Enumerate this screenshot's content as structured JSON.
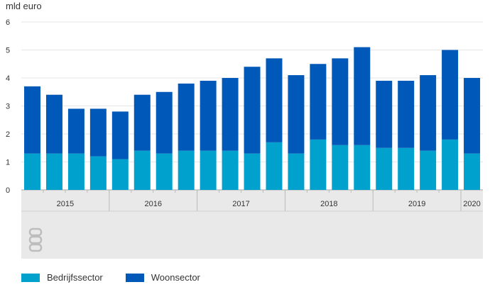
{
  "chart_data": {
    "type": "bar",
    "stacked": true,
    "ylabel": "mld euro",
    "ylim": [
      0,
      6
    ],
    "yticks": [
      0,
      1,
      2,
      3,
      4,
      5,
      6
    ],
    "grid": true,
    "legend_position": "bottom-left",
    "year_groups": [
      {
        "label": "2015",
        "quarters": 4
      },
      {
        "label": "2016",
        "quarters": 4
      },
      {
        "label": "2017",
        "quarters": 4
      },
      {
        "label": "2018",
        "quarters": 4
      },
      {
        "label": "2019",
        "quarters": 4
      },
      {
        "label": "2020",
        "quarters": 1
      }
    ],
    "categories": [
      "2015 Q1",
      "2015 Q2",
      "2015 Q3",
      "2015 Q4",
      "2016 Q1",
      "2016 Q2",
      "2016 Q3",
      "2016 Q4",
      "2017 Q1",
      "2017 Q2",
      "2017 Q3",
      "2017 Q4",
      "2018 Q1",
      "2018 Q2",
      "2018 Q3",
      "2018 Q4",
      "2019 Q1",
      "2019 Q2",
      "2019 Q3",
      "2019 Q4",
      "2020 Q1"
    ],
    "series": [
      {
        "name": "Bedrijfssector",
        "color": "#00a1cd",
        "values": [
          1.3,
          1.3,
          1.3,
          1.2,
          1.1,
          1.4,
          1.3,
          1.4,
          1.4,
          1.4,
          1.3,
          1.7,
          1.3,
          1.8,
          1.6,
          1.6,
          1.5,
          1.5,
          1.4,
          1.8,
          1.3
        ]
      },
      {
        "name": "Woonsector",
        "color": "#0058b8",
        "values": [
          2.4,
          2.1,
          1.6,
          1.7,
          1.7,
          2.0,
          2.2,
          2.4,
          2.5,
          2.6,
          3.1,
          3.0,
          2.8,
          2.7,
          3.1,
          3.5,
          2.4,
          2.4,
          2.7,
          3.2,
          2.7
        ]
      }
    ]
  },
  "colors": {
    "axis_band": "#e9e9e9",
    "grid": "#e6e6e6",
    "logo": "#bdbdbd"
  },
  "logo_icon": "cbs-logo-icon"
}
